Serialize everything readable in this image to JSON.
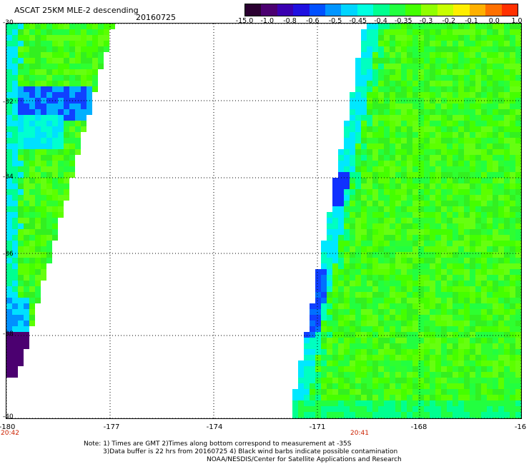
{
  "title": "ASCAT 25KM MLE-2 descending",
  "date": "20160725",
  "colorbar": {
    "labels": [
      "-15.0",
      "-1.0",
      "-0.8",
      "-0.6",
      "-0.5",
      "-0.45",
      "-0.4",
      "-0.35",
      "-0.3",
      "-0.2",
      "-0.1",
      "0.0",
      "1.0"
    ],
    "colors": [
      "#2a0030",
      "#4b0070",
      "#3a00b0",
      "#1f10e0",
      "#0050ff",
      "#0095ff",
      "#00d5ff",
      "#00ffe0",
      "#00ff90",
      "#22ff40",
      "#44ff00",
      "#90ff00",
      "#c8ff00",
      "#ffee00",
      "#ffb000",
      "#ff7000",
      "#ff3000"
    ]
  },
  "axes": {
    "x_ticks": [
      "-180",
      "-177",
      "-174",
      "-171",
      "-168",
      "-16"
    ],
    "y_ticks": [
      "-30",
      "-32",
      "-34",
      "-36",
      "-38",
      "-40"
    ],
    "time_labels": [
      "20:42",
      "20:41"
    ]
  },
  "notes": [
    "Note: 1) Times are GMT 2)Times along bottom correspond to measurement at -35S",
    "3)Data buffer is 22 hrs from 20160725 4) Black wind barbs indicate possible contamination",
    "NOAA/NESDIS/Center for Satellite Applications and Research"
  ]
}
